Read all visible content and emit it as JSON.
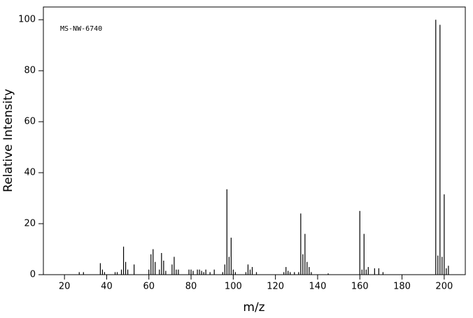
{
  "chart_data": {
    "type": "stick",
    "annotation": "MS-NW-6740",
    "xlabel": "m/z",
    "ylabel": "Relative Intensity",
    "color": "#000000",
    "xlim": [
      10,
      210
    ],
    "ylim": [
      0,
      105
    ],
    "xticks": [
      20,
      40,
      60,
      80,
      100,
      120,
      140,
      160,
      180,
      200
    ],
    "yticks": [
      0,
      20,
      40,
      60,
      80,
      100
    ],
    "x": [
      27,
      29,
      37,
      38,
      39,
      44,
      45,
      47,
      48,
      49,
      50,
      53,
      60,
      61,
      62,
      63,
      65,
      66,
      67,
      68,
      71,
      72,
      73,
      74,
      79,
      80,
      81,
      83,
      84,
      85,
      86,
      87,
      89,
      91,
      95,
      96,
      97,
      98,
      99,
      100,
      101,
      106,
      107,
      108,
      109,
      111,
      124,
      125,
      126,
      127,
      129,
      131,
      132,
      133,
      134,
      135,
      136,
      137,
      145,
      160,
      161,
      162,
      163,
      164,
      167,
      169,
      171,
      196,
      197,
      198,
      199,
      200,
      201,
      202
    ],
    "values": [
      1,
      1,
      4.5,
      2,
      1,
      1,
      1,
      2,
      11,
      5,
      2,
      4,
      2,
      8,
      10,
      5,
      2,
      8.5,
      5.5,
      1.5,
      4,
      7,
      2,
      2,
      2,
      2,
      1.5,
      2,
      2,
      1.5,
      1,
      2,
      1,
      2,
      1,
      4,
      33.5,
      7,
      14.5,
      2,
      1,
      1,
      4,
      2,
      3,
      1,
      1,
      3,
      1.5,
      1,
      1,
      1,
      24,
      8,
      16,
      5,
      3,
      1,
      0.5,
      25,
      2,
      16,
      2,
      3,
      2.5,
      2.5,
      1,
      100,
      7.5,
      98,
      7,
      31.5,
      2.5,
      3.5
    ]
  }
}
